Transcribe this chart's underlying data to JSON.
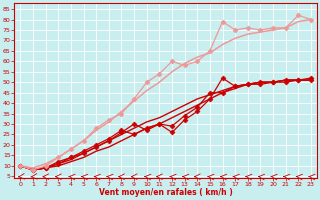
{
  "xlabel": "Vent moyen/en rafales ( km/h )",
  "bg_color": "#c8eef0",
  "grid_color": "#b0d8dc",
  "x_ticks": [
    0,
    1,
    2,
    3,
    4,
    5,
    6,
    7,
    8,
    9,
    10,
    11,
    12,
    13,
    14,
    15,
    16,
    17,
    18,
    19,
    20,
    21,
    22,
    23
  ],
  "y_ticks": [
    5,
    10,
    15,
    20,
    25,
    30,
    35,
    40,
    45,
    50,
    55,
    60,
    65,
    70,
    75,
    80,
    85
  ],
  "xlim": [
    -0.5,
    23.5
  ],
  "ylim": [
    4,
    88
  ],
  "lines": [
    {
      "x": [
        0,
        1,
        2,
        3,
        4,
        5,
        6,
        7,
        8,
        9,
        10,
        11,
        12,
        13,
        14,
        15,
        16,
        17,
        18,
        19,
        20,
        21,
        22,
        23
      ],
      "y": [
        10,
        8,
        9,
        10,
        12,
        14,
        17,
        19,
        22,
        25,
        28,
        30,
        33,
        36,
        39,
        42,
        45,
        47,
        49,
        50,
        50,
        51,
        51,
        51
      ],
      "color": "#cc0000",
      "lw": 1.0,
      "marker": null
    },
    {
      "x": [
        0,
        1,
        2,
        3,
        4,
        5,
        6,
        7,
        8,
        9,
        10,
        11,
        12,
        13,
        14,
        15,
        16,
        17,
        18,
        19,
        20,
        21,
        22,
        23
      ],
      "y": [
        10,
        8,
        9,
        11,
        13,
        16,
        19,
        22,
        25,
        28,
        31,
        33,
        36,
        39,
        42,
        44,
        46,
        48,
        49,
        50,
        50,
        51,
        51,
        51
      ],
      "color": "#cc0000",
      "lw": 1.0,
      "marker": null
    },
    {
      "x": [
        0,
        1,
        2,
        3,
        4,
        5,
        6,
        7,
        8,
        9,
        10,
        11,
        12,
        13,
        14,
        15,
        16,
        17,
        18,
        19,
        20,
        21,
        22,
        23
      ],
      "y": [
        10,
        8,
        9,
        12,
        14,
        16,
        19,
        22,
        26,
        30,
        27,
        30,
        26,
        32,
        36,
        42,
        52,
        48,
        49,
        49,
        50,
        50,
        51,
        51
      ],
      "color": "#cc0000",
      "lw": 0.9,
      "marker": "D",
      "ms": 2.5
    },
    {
      "x": [
        0,
        1,
        2,
        3,
        4,
        5,
        6,
        7,
        8,
        9,
        10,
        11,
        12,
        13,
        14,
        15,
        16,
        17,
        18,
        19,
        20,
        21,
        22,
        23
      ],
      "y": [
        10,
        8,
        9,
        11,
        14,
        17,
        20,
        23,
        27,
        25,
        28,
        30,
        29,
        34,
        38,
        45,
        45,
        48,
        49,
        50,
        50,
        51,
        51,
        52
      ],
      "color": "#cc0000",
      "lw": 0.9,
      "marker": "D",
      "ms": 2.5
    },
    {
      "x": [
        0,
        1,
        2,
        3,
        4,
        5,
        6,
        7,
        8,
        9,
        10,
        11,
        12,
        13,
        14,
        15,
        16,
        17,
        18,
        19,
        20,
        21,
        22,
        23
      ],
      "y": [
        10,
        8,
        10,
        14,
        18,
        22,
        28,
        32,
        35,
        42,
        50,
        54,
        60,
        58,
        60,
        65,
        79,
        75,
        76,
        75,
        76,
        76,
        82,
        80
      ],
      "color": "#ee9999",
      "lw": 0.9,
      "marker": "D",
      "ms": 2.5
    },
    {
      "x": [
        0,
        1,
        2,
        3,
        4,
        5,
        6,
        7,
        8,
        9,
        10,
        11,
        12,
        13,
        14,
        15,
        16,
        17,
        18,
        19,
        20,
        21,
        22,
        23
      ],
      "y": [
        10,
        9,
        11,
        14,
        18,
        22,
        27,
        31,
        36,
        41,
        46,
        50,
        55,
        59,
        62,
        64,
        68,
        71,
        73,
        74,
        75,
        76,
        79,
        80
      ],
      "color": "#ee9999",
      "lw": 1.1,
      "marker": null
    }
  ],
  "arrow_angles": [
    225,
    225,
    270,
    270,
    315,
    315,
    315,
    315,
    270,
    270,
    315,
    270,
    315,
    315,
    270,
    315,
    315,
    315,
    315,
    315,
    315,
    315,
    315,
    315
  ]
}
